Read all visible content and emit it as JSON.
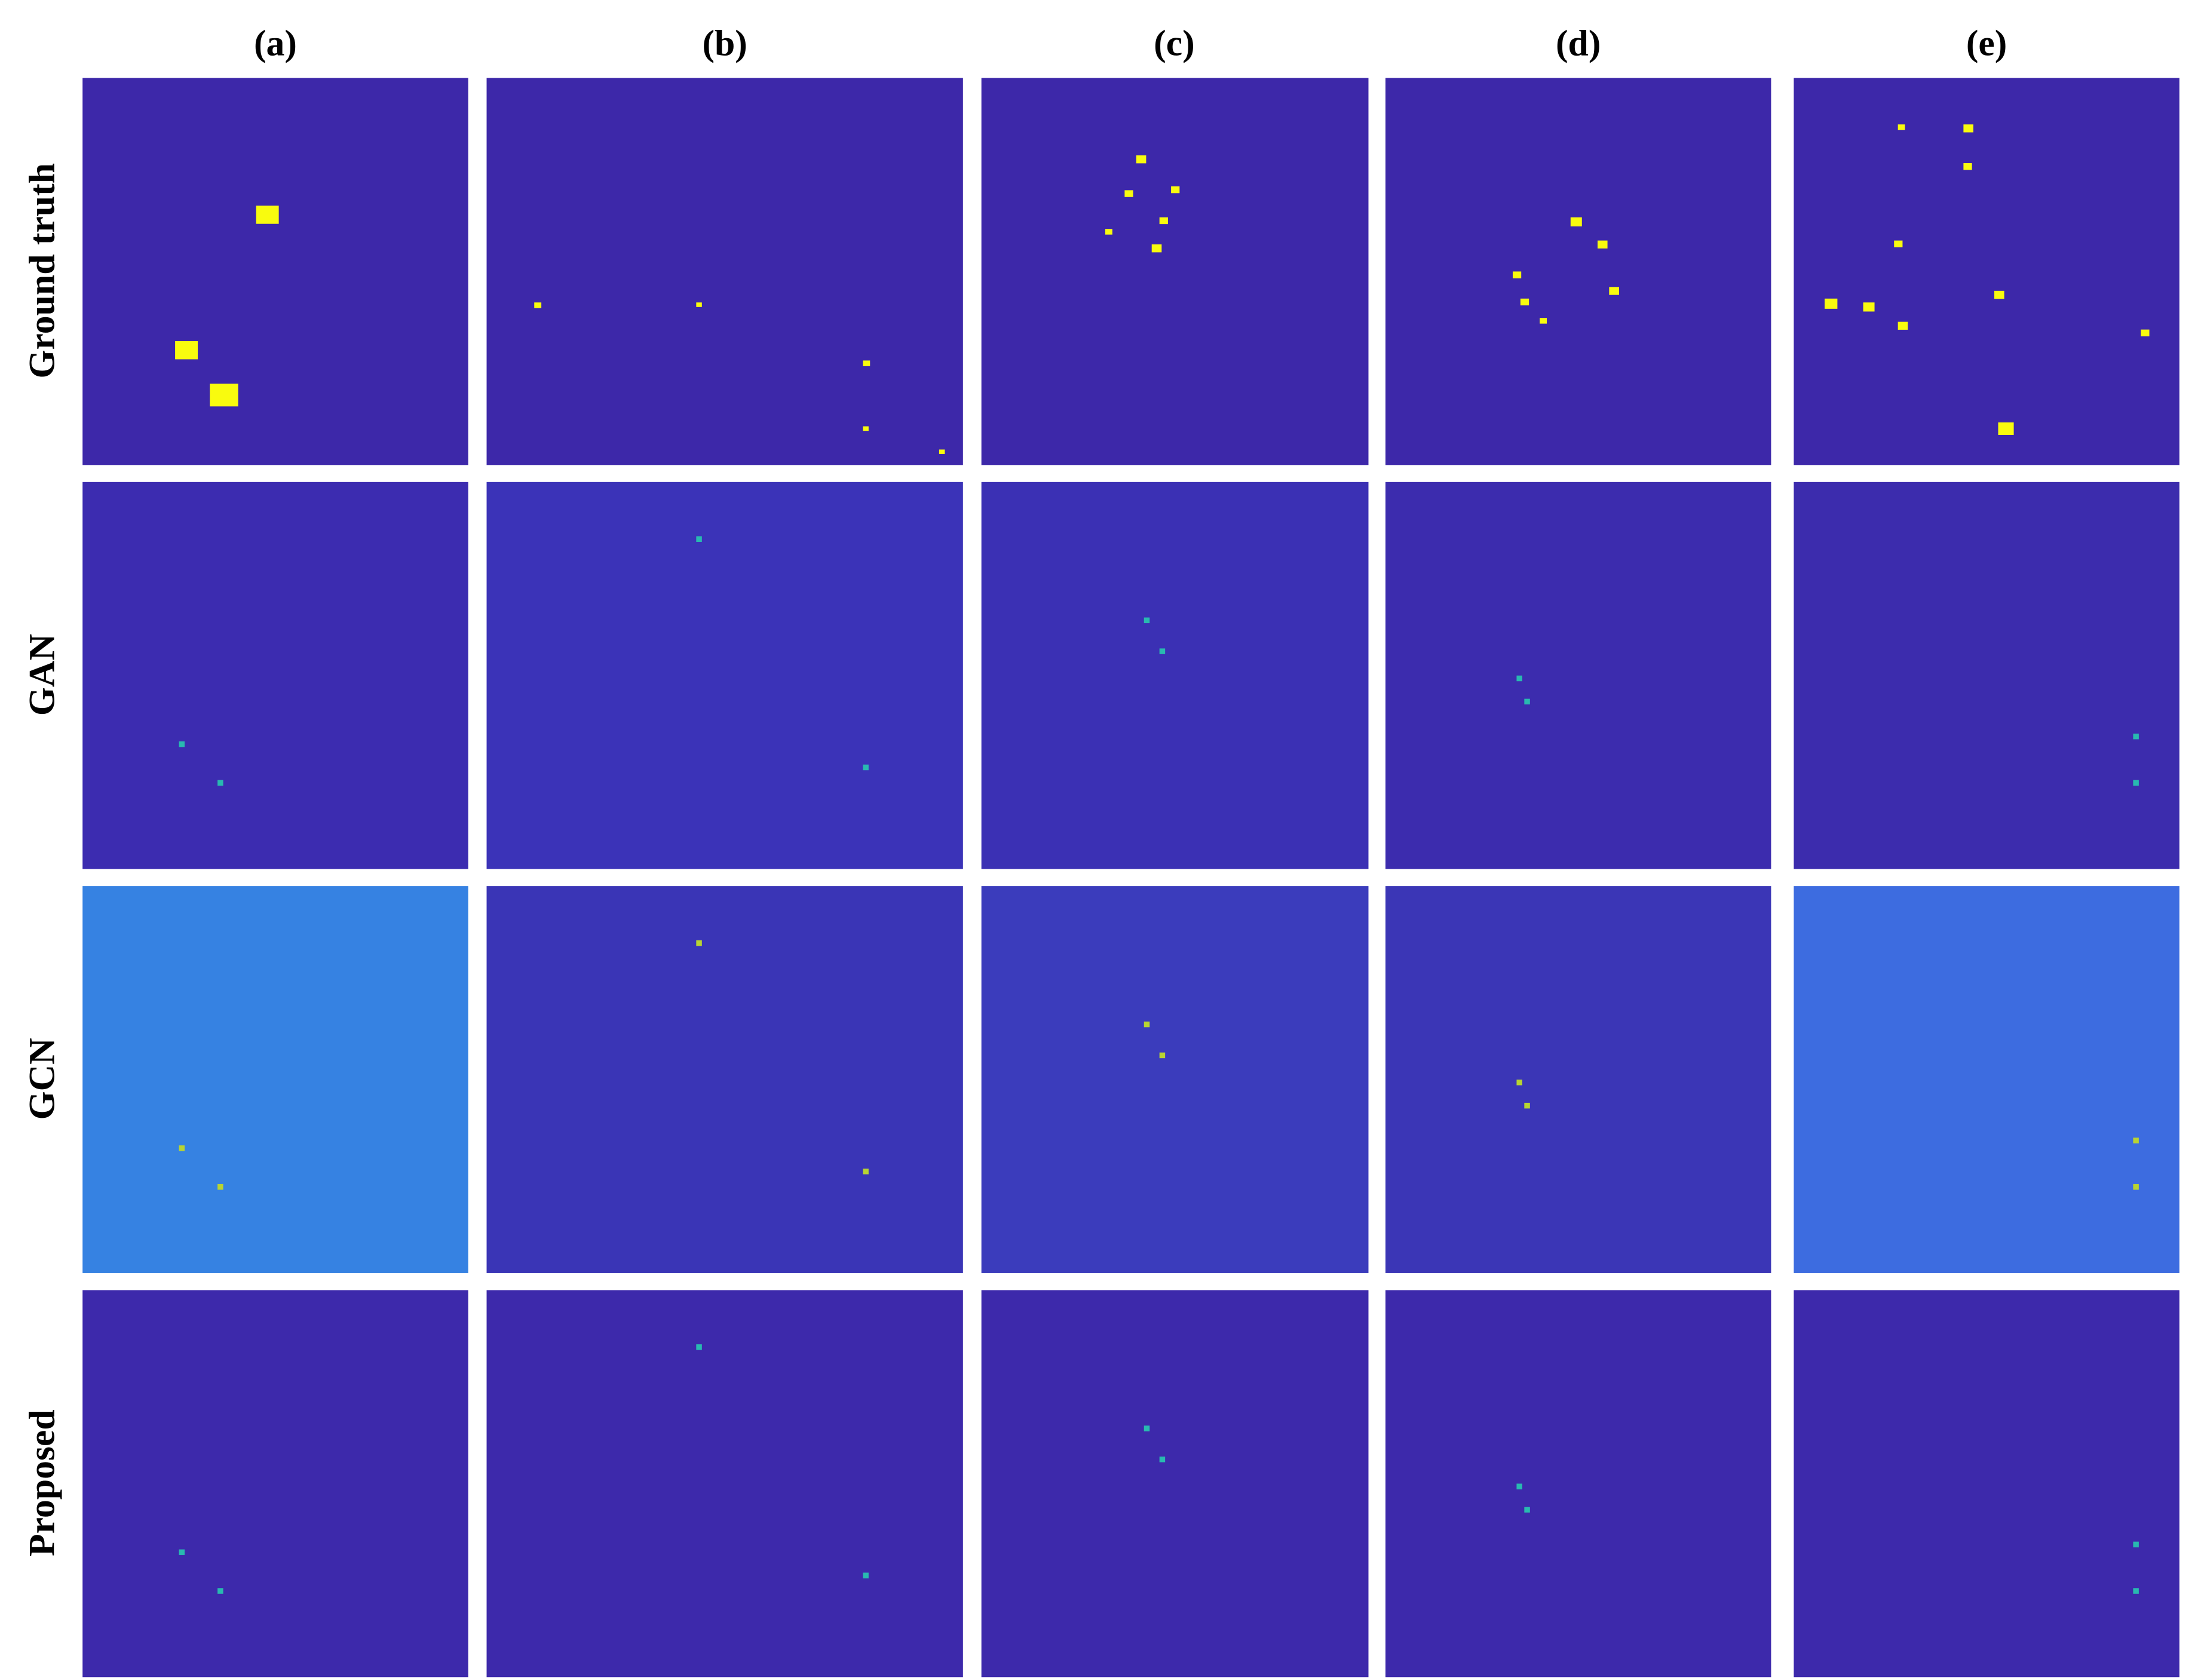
{
  "column_labels": [
    "(a)",
    "(b)",
    "(c)",
    "(d)",
    "(e)"
  ],
  "row_labels": [
    "Ground truth",
    "GAN",
    "GCN",
    "Proposed"
  ]
}
